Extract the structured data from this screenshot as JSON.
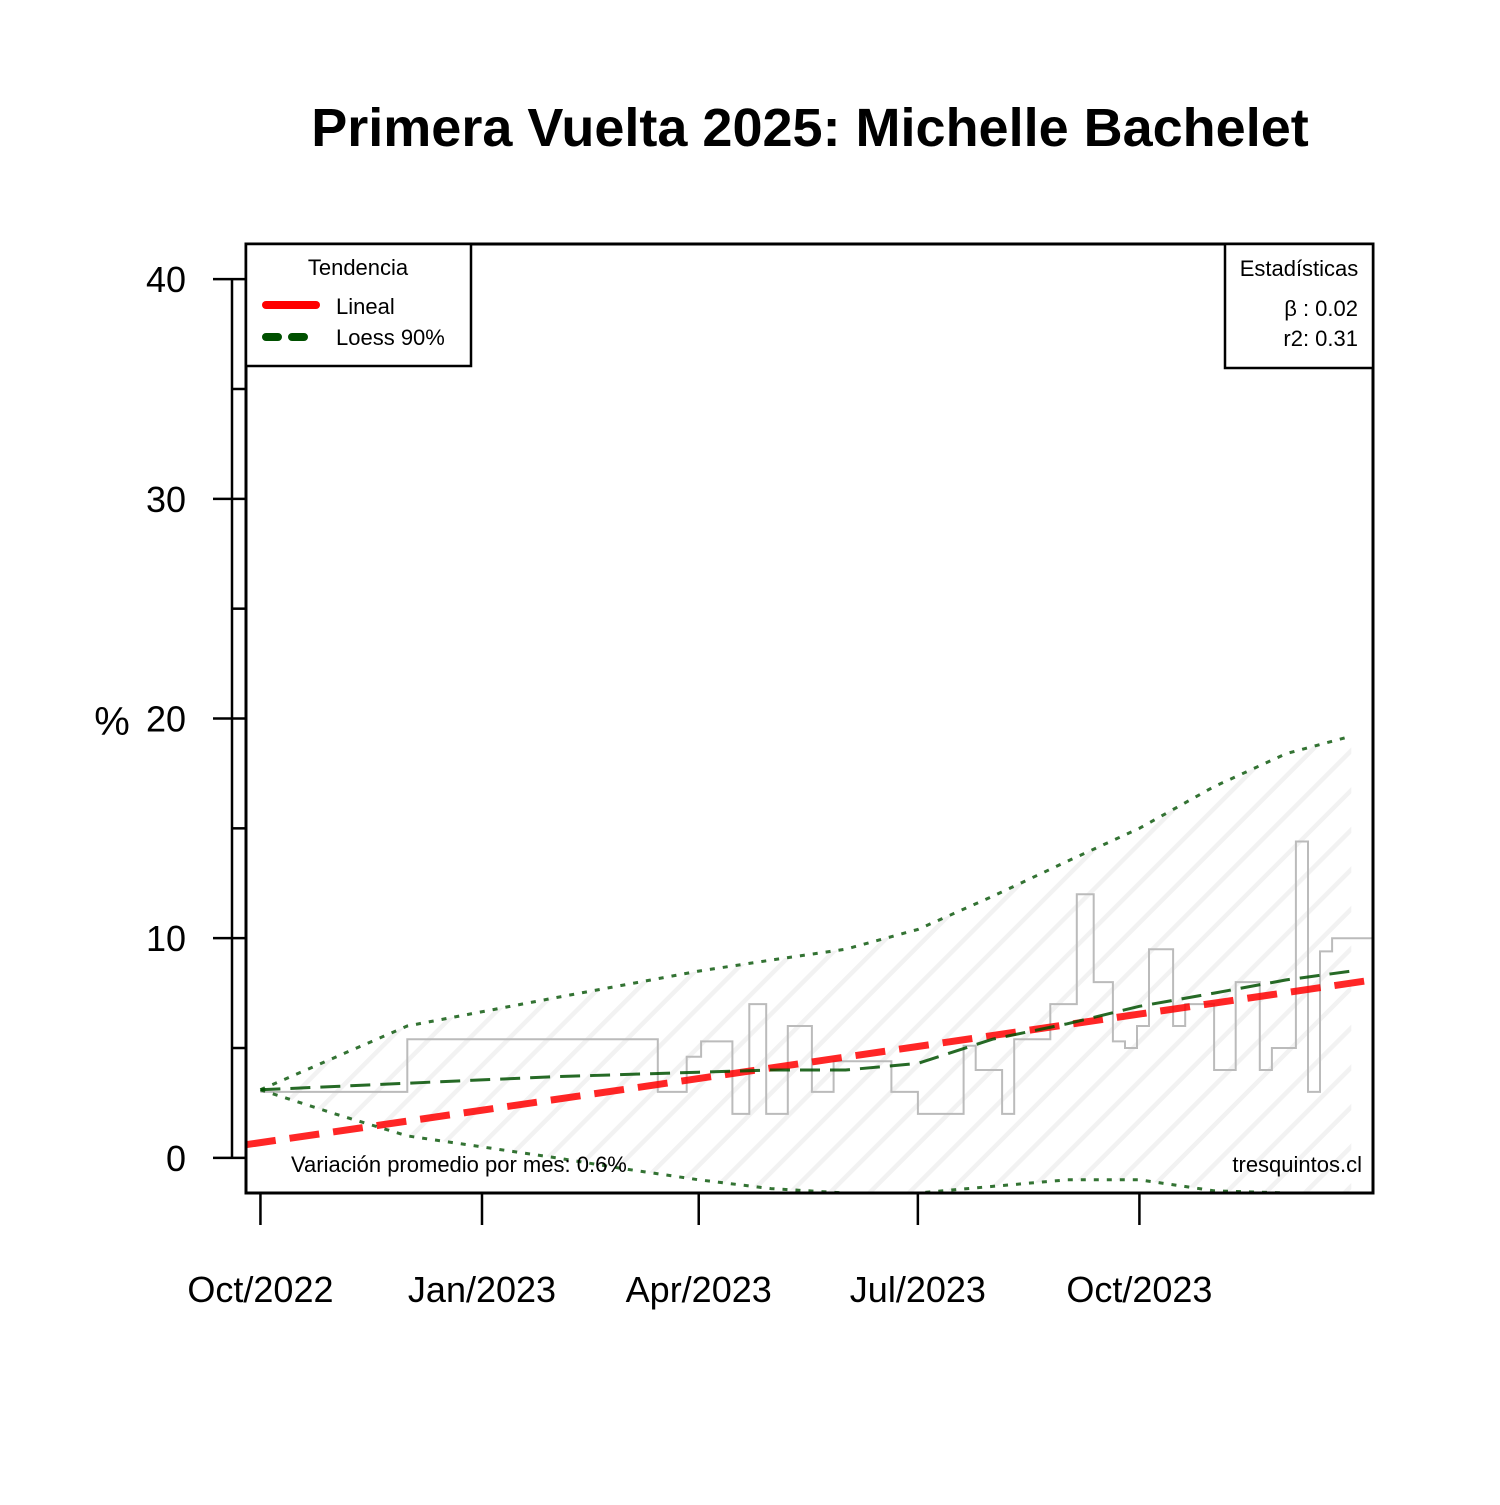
{
  "chart_data": {
    "type": "line",
    "title": "Primera Vuelta 2025: Michelle Bachelet",
    "ylabel": "%",
    "xlabel": "",
    "xlim": [
      "2022-09-25",
      "2024-01-06"
    ],
    "ylim": [
      -1.6,
      41.6
    ],
    "y_ticks": [
      0,
      10,
      20,
      30,
      40
    ],
    "y_minor_ticks": [
      5,
      15,
      25,
      35
    ],
    "x_ticks": [
      {
        "date": "2022-10-01",
        "label": "Oct/2022"
      },
      {
        "date": "2023-01-01",
        "label": "Jan/2023"
      },
      {
        "date": "2023-04-01",
        "label": "Apr/2023"
      },
      {
        "date": "2023-07-01",
        "label": "Jul/2023"
      },
      {
        "date": "2023-10-01",
        "label": "Oct/2023"
      }
    ],
    "legend": {
      "title": "Tendencia",
      "position": "top-left",
      "entries": [
        {
          "label": "Lineal",
          "color": "#ff0000",
          "style": "dashed"
        },
        {
          "label": "Loess 90%",
          "color": "#005000",
          "style": "dashed"
        }
      ]
    },
    "stats_box": {
      "title": "Estadísticas",
      "position": "top-right",
      "lines": [
        "β : 0.02",
        "r2: 0.31"
      ]
    },
    "footnote_left": "Variación promedio por mes: 0.6%",
    "footnote_right": "tresquintos.cl",
    "series": [
      {
        "kind": "step",
        "color": "#bbbbbb",
        "x": [
          "2022-10-01",
          "2022-12-01",
          "2023-01-01",
          "2023-02-01",
          "2023-03-01",
          "2023-03-15",
          "2023-03-27",
          "2023-04-02",
          "2023-04-15",
          "2023-04-22",
          "2023-04-29",
          "2023-05-08",
          "2023-05-18",
          "2023-05-27",
          "2023-06-05",
          "2023-06-10",
          "2023-06-15",
          "2023-06-20",
          "2023-07-01",
          "2023-07-15",
          "2023-07-20",
          "2023-07-25",
          "2023-08-05",
          "2023-08-10",
          "2023-08-20",
          "2023-08-25",
          "2023-09-05",
          "2023-09-12",
          "2023-09-20",
          "2023-09-25",
          "2023-09-30",
          "2023-10-05",
          "2023-10-15",
          "2023-10-20",
          "2023-11-01",
          "2023-11-10",
          "2023-11-20",
          "2023-11-25",
          "2023-12-05",
          "2023-12-10",
          "2023-12-15",
          "2023-12-20",
          "2023-12-28"
        ],
        "y": [
          3.0,
          5.4,
          5.4,
          5.4,
          5.4,
          3.0,
          4.6,
          5.3,
          2.0,
          7.0,
          2.0,
          6.0,
          3.0,
          4.4,
          4.4,
          4.4,
          4.4,
          3.0,
          2.0,
          2.0,
          5.1,
          4.0,
          2.0,
          5.4,
          5.4,
          7.0,
          12.0,
          8.0,
          5.3,
          5.0,
          6.0,
          9.5,
          6.0,
          7.0,
          4.0,
          8.0,
          4.0,
          5.0,
          14.4,
          3.0,
          9.4,
          10.0,
          10.0
        ]
      },
      {
        "name": "Lineal",
        "kind": "line",
        "color": "#ff0000",
        "x": [
          "2022-09-25",
          "2024-01-06"
        ],
        "y": [
          0.6,
          8.1
        ]
      },
      {
        "name": "Loess 90%",
        "kind": "line",
        "color": "#005000",
        "x": [
          "2022-10-01",
          "2022-12-01",
          "2023-02-01",
          "2023-04-01",
          "2023-05-01",
          "2023-06-01",
          "2023-07-01",
          "2023-08-01",
          "2023-09-01",
          "2023-10-01",
          "2023-11-01",
          "2023-12-01",
          "2023-12-28"
        ],
        "y": [
          3.1,
          3.4,
          3.7,
          3.9,
          4.0,
          4.0,
          4.3,
          5.4,
          6.1,
          6.9,
          7.5,
          8.1,
          8.5
        ]
      },
      {
        "kind": "band-upper",
        "color": "#005000",
        "x": [
          "2022-10-01",
          "2022-12-01",
          "2023-02-01",
          "2023-04-01",
          "2023-05-01",
          "2023-06-01",
          "2023-07-01",
          "2023-08-01",
          "2023-09-01",
          "2023-10-01",
          "2023-11-01",
          "2023-12-01",
          "2023-12-28"
        ],
        "y": [
          3.1,
          6.0,
          7.3,
          8.5,
          9.0,
          9.5,
          10.4,
          11.9,
          13.5,
          15.0,
          16.9,
          18.4,
          19.2
        ]
      },
      {
        "kind": "band-lower",
        "color": "#005000",
        "x": [
          "2022-10-01",
          "2022-11-01",
          "2022-12-01",
          "2023-01-01",
          "2023-02-01",
          "2023-03-01",
          "2023-04-01",
          "2023-05-01",
          "2023-06-01",
          "2023-07-01",
          "2023-08-01",
          "2023-09-01",
          "2023-10-01",
          "2023-11-01",
          "2023-12-01",
          "2023-12-28"
        ],
        "y": [
          3.1,
          2.0,
          1.0,
          0.5,
          0.0,
          -0.5,
          -1.0,
          -1.4,
          -1.6,
          -1.6,
          -1.3,
          -1.0,
          -1.0,
          -1.5,
          -1.6,
          -1.6
        ]
      }
    ]
  }
}
